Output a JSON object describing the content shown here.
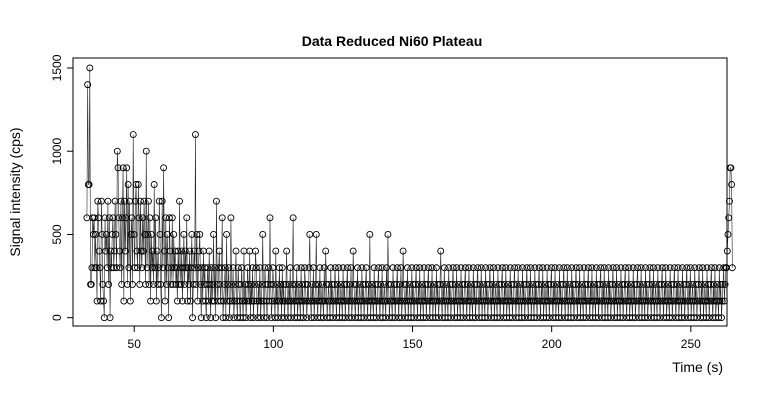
{
  "chart_data": {
    "type": "line",
    "title": "Data Reduced Ni60 Plateau",
    "xlabel": "Time (s)",
    "ylabel": "Signal intensity (cps)",
    "xlim": [
      28,
      263
    ],
    "ylim": [
      -50,
      1560
    ],
    "x_ticks": [
      50,
      100,
      150,
      200,
      250
    ],
    "y_ticks": [
      0,
      500,
      1000,
      1500
    ],
    "x_tick_labels": [
      "50",
      "100",
      "150",
      "200",
      "250"
    ],
    "y_tick_labels": [
      "0",
      "500",
      "1000",
      "1500"
    ],
    "grid": false,
    "marker": "open-circle",
    "line_color": "#000000",
    "series": [
      {
        "x_start": 33.0,
        "x_step": 0.26,
        "values": [
          600,
          1400,
          800,
          800,
          1500,
          200,
          200,
          300,
          600,
          500,
          600,
          300,
          500,
          300,
          100,
          700,
          600,
          400,
          300,
          100,
          700,
          500,
          200,
          100,
          0,
          600,
          400,
          500,
          300,
          700,
          200,
          600,
          0,
          400,
          300,
          500,
          600,
          300,
          400,
          700,
          500,
          300,
          1000,
          900,
          600,
          400,
          300,
          700,
          200,
          600,
          900,
          100,
          700,
          400,
          600,
          900,
          200,
          800,
          300,
          700,
          100,
          500,
          600,
          200,
          1100,
          500,
          300,
          700,
          800,
          400,
          300,
          800,
          600,
          200,
          700,
          400,
          300,
          600,
          400,
          700,
          500,
          200,
          1000,
          300,
          500,
          700,
          200,
          600,
          100,
          500,
          300,
          400,
          200,
          800,
          300,
          600,
          100,
          400,
          200,
          300,
          700,
          500,
          200,
          0,
          700,
          300,
          900,
          400,
          100,
          600,
          200,
          500,
          300,
          0,
          600,
          400,
          200,
          300,
          600,
          200,
          500,
          300,
          400,
          200,
          300,
          100,
          400,
          200,
          700,
          300,
          200,
          400,
          100,
          300,
          500,
          200,
          400,
          300,
          600,
          100,
          300,
          200,
          400,
          100,
          300,
          500,
          0,
          200,
          400,
          300,
          1100,
          200,
          500,
          100,
          300,
          400,
          500,
          200,
          0,
          300,
          100,
          400,
          200,
          300,
          100,
          0,
          200,
          300,
          100,
          400,
          200,
          0,
          300,
          100,
          200,
          500,
          100,
          300,
          0,
          700,
          200,
          100,
          300,
          400,
          200,
          100,
          300,
          600,
          0,
          100,
          200,
          300,
          0,
          500,
          100,
          200,
          300,
          0,
          100,
          600,
          200,
          100,
          300,
          0,
          100,
          200,
          400,
          100,
          0,
          300,
          200,
          100,
          0,
          200,
          300,
          100,
          0,
          400,
          100,
          200,
          0,
          100,
          300,
          200,
          100,
          400,
          0,
          200,
          100,
          300,
          0,
          100,
          200,
          400,
          300,
          100,
          0,
          200,
          100,
          300,
          0,
          100,
          200,
          500,
          100,
          0,
          300,
          200,
          100,
          0,
          200,
          300,
          100,
          600,
          200,
          0,
          100,
          300,
          200,
          100,
          0,
          400,
          100,
          200,
          0,
          100,
          300,
          100,
          200,
          0,
          300,
          100,
          200,
          0,
          100,
          200,
          400,
          100,
          0,
          200,
          100,
          300,
          0,
          100,
          200,
          600,
          100,
          0,
          200,
          100,
          300,
          0,
          100,
          200,
          100,
          0,
          300,
          100,
          200,
          0,
          100,
          300,
          200,
          100,
          0,
          200,
          100,
          300,
          500,
          100,
          0,
          200,
          100,
          300,
          0,
          100,
          200,
          500,
          100,
          0,
          200,
          100,
          300,
          0,
          100,
          200,
          100,
          0,
          300,
          100,
          400,
          200,
          0,
          100,
          200,
          100,
          0,
          300,
          100,
          200,
          0,
          100,
          200,
          300,
          100,
          0,
          200,
          100,
          300,
          0,
          100,
          200,
          100,
          0,
          300,
          100,
          200,
          0,
          100,
          200,
          300,
          100,
          0,
          200,
          100,
          300,
          0,
          100,
          400,
          200,
          100,
          0,
          200,
          100,
          300,
          0,
          100,
          200,
          100,
          0,
          300,
          100,
          200,
          0,
          100,
          200,
          300,
          100,
          0,
          200,
          100,
          500,
          0,
          100,
          200,
          100,
          0,
          300,
          100,
          200,
          0,
          100,
          200,
          300,
          100,
          0,
          200,
          100,
          300,
          0,
          100,
          200,
          100,
          0,
          300,
          100,
          500,
          200,
          0,
          100,
          200,
          100,
          0,
          300,
          100,
          200,
          0,
          100,
          200,
          300,
          100,
          0,
          200,
          100,
          300,
          0,
          100,
          400,
          200,
          100,
          0,
          200,
          100,
          300,
          0,
          100,
          200,
          100,
          0,
          300,
          100,
          200,
          0,
          100,
          200,
          300,
          100,
          0,
          200,
          100,
          300,
          0,
          100,
          200,
          100,
          0,
          300,
          100,
          200,
          0,
          100,
          200,
          300,
          100,
          0,
          200,
          100,
          300,
          0,
          100,
          200,
          100,
          0,
          300,
          100,
          200,
          0,
          100,
          200,
          400,
          100,
          0,
          200,
          100,
          300,
          0,
          100,
          200,
          100,
          0,
          300,
          100,
          200,
          0,
          100,
          200,
          300,
          100,
          0,
          200,
          100,
          300,
          0,
          100,
          200,
          100,
          0,
          300,
          100,
          200,
          0,
          100,
          200,
          300,
          100,
          0,
          200,
          100,
          300,
          0,
          100,
          200,
          100,
          0,
          300,
          100,
          200,
          0,
          100,
          200,
          300,
          100,
          0,
          200,
          100,
          300,
          0,
          100,
          200,
          100,
          0,
          300,
          100,
          200,
          0,
          100,
          200,
          300,
          100,
          0,
          200,
          100,
          300,
          0,
          100,
          200,
          100,
          0,
          300,
          100,
          200,
          0,
          100,
          200,
          300,
          100,
          0,
          200,
          100,
          300,
          0,
          100,
          200,
          100,
          0,
          300,
          100,
          200,
          0,
          100,
          200,
          300,
          100,
          0,
          200,
          100,
          300,
          0,
          100,
          200,
          100,
          0,
          300,
          100,
          200,
          0,
          100,
          200,
          300,
          100,
          0,
          200,
          100,
          300,
          0,
          100,
          200,
          100,
          0,
          300,
          100,
          200,
          0,
          100,
          200,
          300,
          100,
          0,
          200,
          100,
          300,
          0,
          100,
          200,
          100,
          0,
          300,
          100,
          200,
          0,
          100,
          200,
          300,
          100,
          0,
          200,
          100,
          300,
          0,
          100,
          200,
          100,
          0,
          300,
          100,
          200,
          0,
          100,
          200,
          300,
          100,
          0,
          200,
          100,
          300,
          0,
          100,
          200,
          100,
          0,
          300,
          100,
          200,
          0,
          100,
          200,
          300,
          100,
          0,
          200,
          100,
          300,
          0,
          100,
          200,
          100,
          0,
          300,
          100,
          200,
          0,
          100,
          200,
          300,
          100,
          0,
          200,
          100,
          300,
          0,
          100,
          200,
          100,
          0,
          300,
          100,
          200,
          0,
          100,
          200,
          300,
          100,
          0,
          200,
          100,
          300,
          0,
          100,
          200,
          100,
          0,
          300,
          100,
          200,
          0,
          100,
          200,
          300,
          100,
          0,
          200,
          100,
          300,
          0,
          100,
          200,
          100,
          0,
          300,
          100,
          200,
          0,
          100,
          200,
          300,
          100,
          0,
          200,
          100,
          300,
          0,
          100,
          200,
          100,
          0,
          300,
          100,
          200,
          0,
          100,
          200,
          300,
          100,
          0,
          200,
          100,
          300,
          0,
          100,
          200,
          100,
          0,
          300,
          100,
          200,
          0,
          100,
          200,
          300,
          100,
          0,
          200,
          100,
          300,
          0,
          100,
          200,
          100,
          0,
          300,
          100,
          200,
          0,
          100,
          200,
          300,
          100,
          0,
          200,
          100,
          300,
          0,
          100,
          200,
          100,
          0,
          300,
          100,
          200,
          0,
          100,
          200,
          300,
          100,
          0,
          200,
          100,
          300,
          0,
          100,
          200,
          100,
          0,
          300,
          100,
          200,
          0,
          100,
          200,
          300,
          100,
          0,
          200,
          100,
          300,
          0,
          100,
          200,
          100,
          0,
          300,
          100,
          200,
          0,
          100,
          200,
          300,
          100,
          0,
          200,
          100,
          300,
          0,
          100,
          200,
          100,
          0,
          300,
          100,
          200,
          0,
          100,
          200,
          300,
          100,
          0,
          200,
          100,
          300,
          0,
          100,
          200,
          100,
          0,
          300,
          100,
          200,
          0,
          100,
          200,
          300,
          100,
          200,
          300,
          300,
          400,
          500,
          600,
          700,
          900,
          900,
          800,
          300
        ]
      }
    ]
  }
}
